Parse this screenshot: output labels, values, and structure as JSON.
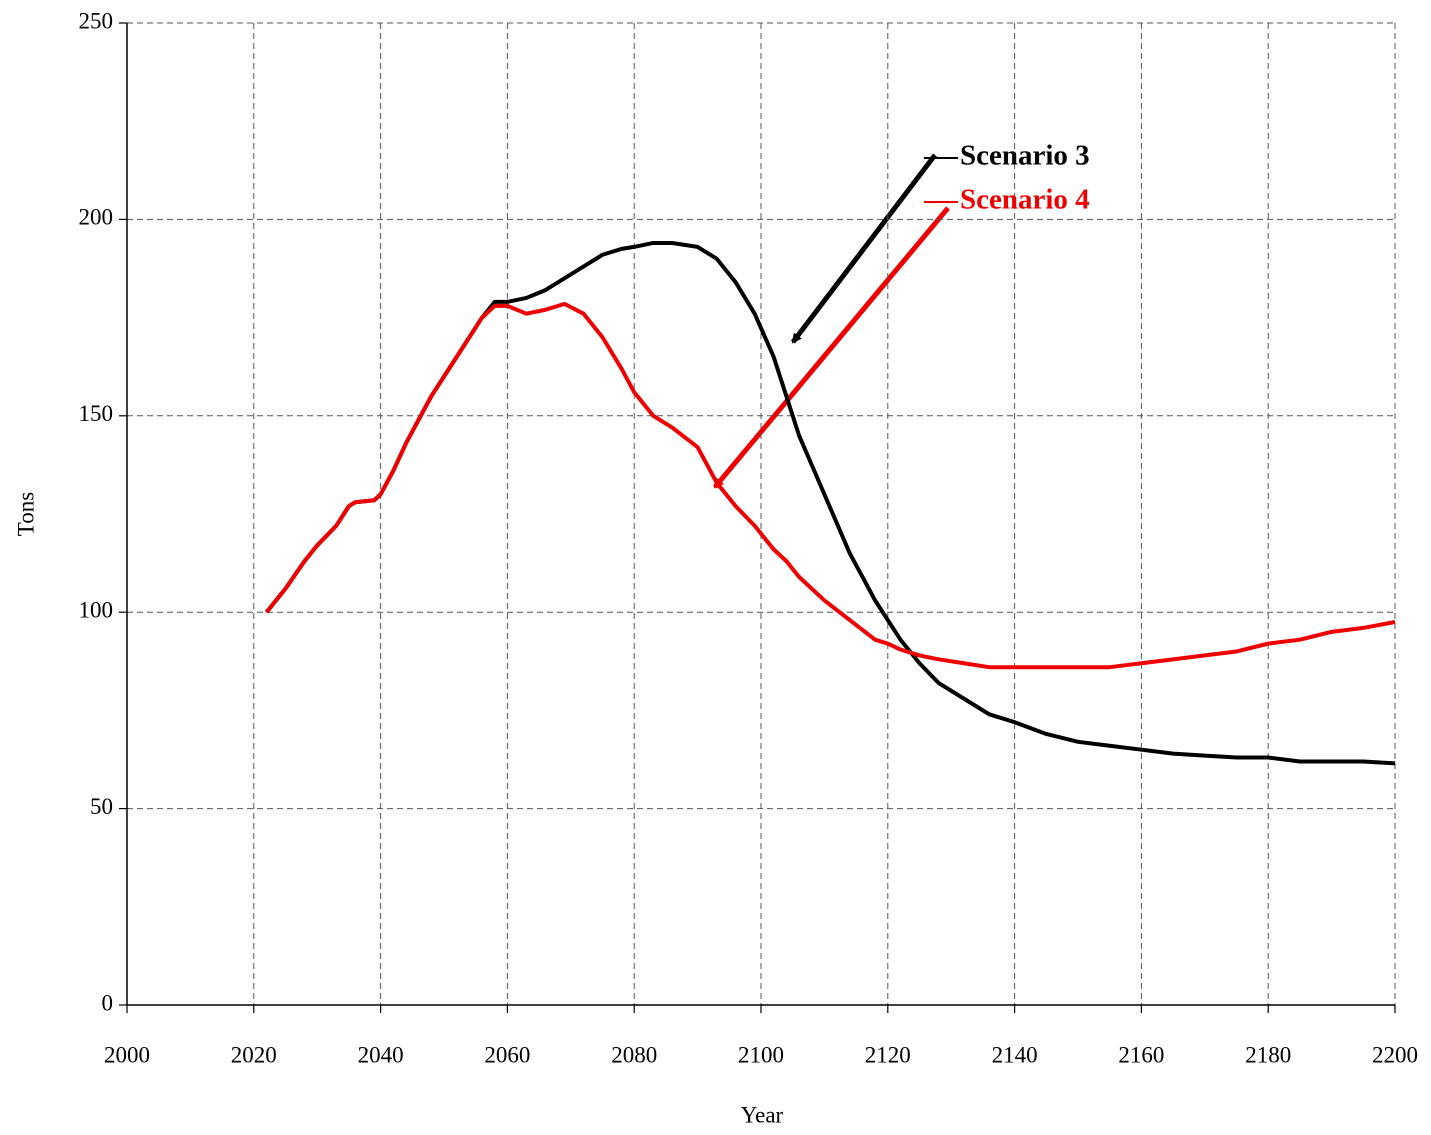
{
  "chart_data": {
    "type": "line",
    "x_label": "Year",
    "y_label": "Tons",
    "x": [
      2022,
      2025,
      2028,
      2030,
      2033,
      2035,
      2036,
      2039,
      2040,
      2042,
      2044,
      2046,
      2048,
      2050,
      2052,
      2054,
      2056,
      2058,
      2060,
      2063,
      2066,
      2069,
      2072,
      2075,
      2078,
      2080,
      2083,
      2086,
      2090,
      2093,
      2096,
      2099,
      2102,
      2104,
      2106,
      2110,
      2114,
      2118,
      2120,
      2122,
      2125,
      2128,
      2132,
      2136,
      2140,
      2145,
      2150,
      2155,
      2160,
      2165,
      2170,
      2175,
      2180,
      2185,
      2190,
      2195,
      2200
    ],
    "series": [
      {
        "name": "Scenario 3",
        "color": "#000000",
        "values": [
          100,
          106,
          113,
          117,
          122,
          127,
          128,
          128.5,
          130,
          136,
          143,
          149,
          155,
          160,
          165,
          170,
          175,
          179,
          179,
          180,
          182,
          185,
          188,
          191,
          192.5,
          193,
          194,
          194,
          193,
          190,
          184,
          176,
          165,
          155,
          145,
          130,
          115,
          103,
          98,
          93,
          87,
          82,
          78,
          74,
          72,
          69,
          67,
          66,
          65,
          64,
          63.5,
          63,
          63,
          62,
          62,
          62,
          61.5
        ]
      },
      {
        "name": "Scenario 4",
        "color": "#ee0000",
        "values": [
          100,
          106,
          113,
          117,
          122,
          127,
          128,
          128.5,
          130,
          136,
          143,
          149,
          155,
          160,
          165,
          170,
          175,
          178,
          178,
          176,
          177,
          178.5,
          176,
          170,
          162,
          156,
          150,
          147,
          142,
          133,
          127,
          122,
          116,
          113,
          109,
          103,
          98,
          93,
          92,
          90.5,
          89,
          88,
          87,
          86,
          86,
          86,
          86,
          86,
          87,
          88,
          89,
          90,
          92,
          93,
          95,
          96,
          97.5
        ]
      }
    ],
    "xlim": [
      2000,
      2200
    ],
    "xticks": [
      2000,
      2020,
      2040,
      2060,
      2080,
      2100,
      2120,
      2140,
      2160,
      2180,
      2200
    ],
    "ylim": [
      0,
      250
    ],
    "yticks": [
      0,
      50,
      100,
      150,
      200,
      250
    ],
    "grid": true
  }
}
